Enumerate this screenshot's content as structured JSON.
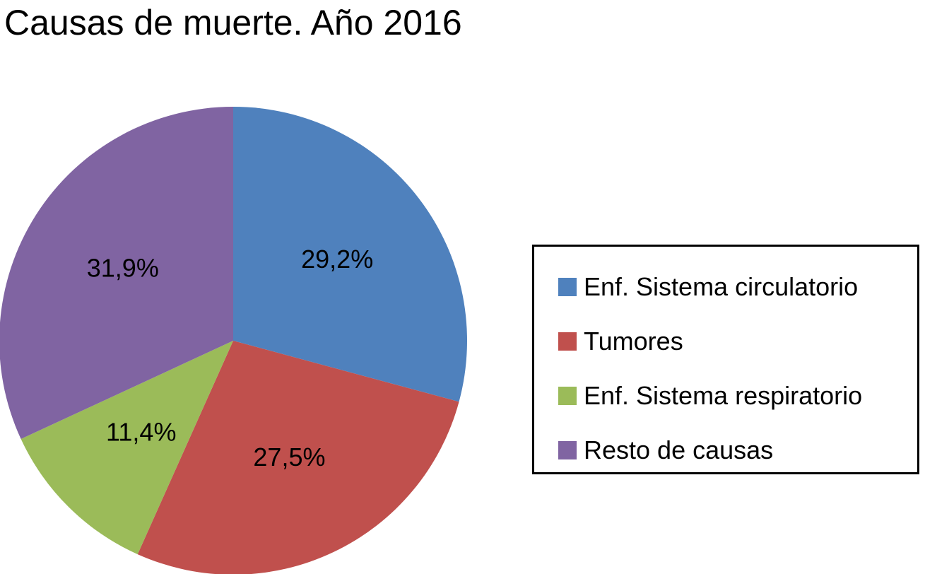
{
  "chart_data": {
    "type": "pie",
    "title": "Causas de muerte. Año 2016",
    "legend_position": "right",
    "slices": [
      {
        "label": "Enf. Sistema circulatorio",
        "value": 29.2,
        "display": "29,2%",
        "color": "#4F81BD"
      },
      {
        "label": "Tumores",
        "value": 27.5,
        "display": "27,5%",
        "color": "#C0504D"
      },
      {
        "label": "Enf. Sistema respiratorio",
        "value": 11.4,
        "display": "11,4%",
        "color": "#9BBB59"
      },
      {
        "label": "Resto de causas",
        "value": 31.9,
        "display": "31,9%",
        "color": "#8064A2"
      }
    ]
  }
}
